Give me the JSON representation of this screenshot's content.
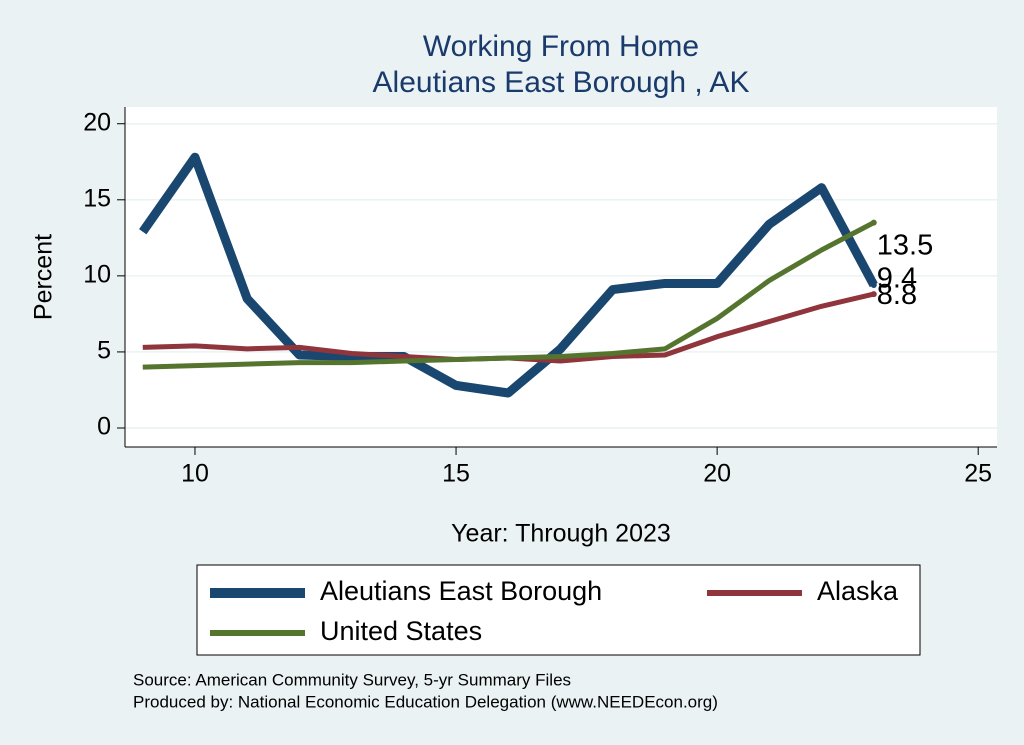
{
  "chart_data": {
    "type": "line",
    "title": "Working From Home",
    "subtitle": "Aleutians East Borough , AK",
    "x_label": "Year: Through 2023",
    "y_label": "Percent",
    "x": [
      9,
      10,
      11,
      12,
      13,
      14,
      15,
      16,
      17,
      18,
      19,
      20,
      21,
      22,
      23
    ],
    "series": [
      {
        "name": "Aleutians East Borough",
        "color": "#1a476f",
        "values": [
          12.9,
          17.8,
          8.5,
          4.8,
          4.7,
          4.7,
          2.8,
          2.3,
          5.2,
          9.1,
          9.5,
          9.5,
          13.4,
          15.8,
          9.4
        ]
      },
      {
        "name": "Alaska",
        "color": "#90353b",
        "values": [
          5.3,
          5.4,
          5.2,
          5.3,
          4.9,
          4.7,
          4.5,
          4.6,
          4.4,
          4.7,
          4.8,
          6.0,
          7.0,
          8.0,
          8.8
        ]
      },
      {
        "name": "United States",
        "color": "#55752f",
        "values": [
          4.0,
          4.1,
          4.2,
          4.3,
          4.3,
          4.4,
          4.5,
          4.6,
          4.7,
          4.9,
          5.2,
          7.2,
          9.7,
          11.7,
          13.5
        ]
      }
    ],
    "xlim": [
      8.66,
      25.36
    ],
    "xticks": [
      10,
      15,
      20,
      25
    ],
    "ylim": [
      -1.25,
      21.1
    ],
    "yticks": [
      0,
      5,
      10,
      15,
      20
    ],
    "grid": true,
    "notes": [
      "Source: American Community Survey, 5-yr Summary Files",
      "Produced by: National Economic Education Delegation (www.NEEDEcon.org)"
    ]
  }
}
